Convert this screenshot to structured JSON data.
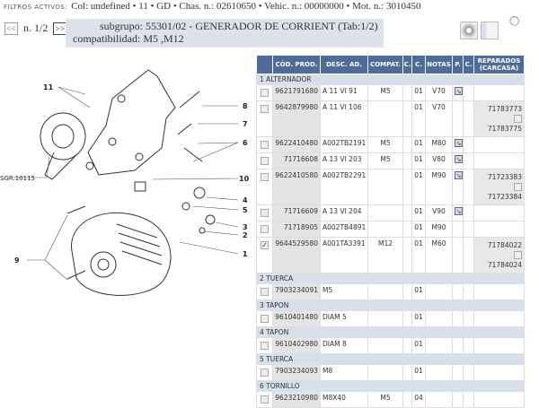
{
  "filters": {
    "label": "FILTROS ACTIVOS:",
    "text": "Col: undefined • 11 • GD • Chas. n.: 02610650 • Vehic. n.: 00000000 • Mot. n.: 3010450"
  },
  "nav": {
    "prev": "<<",
    "page": "n. 1/2",
    "next": ">>"
  },
  "subgroup": {
    "line1": "subgrupo: 55301/02 - GENERADOR DE CORRIENT (Tab:1/2)",
    "line2": "compatibilidad: M5 ,M12"
  },
  "diagram": {
    "labels": {
      "l11": "11",
      "l8": "8",
      "l7": "7",
      "l6": "6",
      "sgr": "SGR.10115",
      "l10": "10",
      "l4": "4",
      "l5": "5",
      "l3": "3",
      "l2": "2",
      "l1": "1",
      "l9": "9"
    }
  },
  "table": {
    "headers": [
      "CÓD. PROD.",
      "DESC. AD.",
      "COMPAT.",
      "C.",
      "C.",
      "NOTAS",
      "P.",
      "C.",
      "REPARADOS (CARCASA)"
    ],
    "groups": [
      {
        "title": "1 ALTERNADOR",
        "rows": [
          {
            "code": "9621791680",
            "desc": "A 11 VI 91",
            "compat": "M5",
            "c2": "01",
            "notas": "V70",
            "pic": true,
            "checked": false
          },
          {
            "code": "9642879980",
            "desc": "A 11 VI 106",
            "compat": "",
            "c2": "01",
            "notas": "V70",
            "pic": false,
            "checked": false,
            "rep": [
              "71783773",
              "71783775"
            ]
          },
          {
            "code": "9622410480",
            "desc": "A002TB2191",
            "compat": "M5",
            "c2": "01",
            "notas": "M80",
            "pic": true,
            "checked": false
          },
          {
            "code": "71716608",
            "desc": "A 13 VI 203",
            "compat": "M5",
            "c2": "01",
            "notas": "V80",
            "pic": true,
            "checked": false
          },
          {
            "code": "9622410580",
            "desc": "A002TB2291",
            "compat": "",
            "c2": "01",
            "notas": "M90",
            "pic": true,
            "checked": false,
            "rep": [
              "71723383",
              "71723384"
            ]
          },
          {
            "code": "71716609",
            "desc": "A 13 VI 204",
            "compat": "",
            "c2": "01",
            "notas": "V90",
            "pic": true,
            "checked": false
          },
          {
            "code": "71718905",
            "desc": "A002TB4891",
            "compat": "",
            "c2": "01",
            "notas": "M90",
            "pic": false,
            "checked": false
          },
          {
            "code": "9644529580",
            "desc": "A001TA3391",
            "compat": "M12",
            "c2": "01",
            "notas": "M60",
            "pic": false,
            "checked": true,
            "rep": [
              "71784022",
              "71784024"
            ]
          }
        ]
      },
      {
        "title": "2 TUERCA",
        "rows": [
          {
            "code": "7903234091",
            "desc": "M5",
            "compat": "",
            "c2": "01",
            "notas": "",
            "pic": false,
            "checked": false
          }
        ]
      },
      {
        "title": "3 TAPON",
        "rows": [
          {
            "code": "9610401480",
            "desc": "DIAM 5",
            "compat": "",
            "c2": "01",
            "notas": "",
            "pic": false,
            "checked": false
          }
        ]
      },
      {
        "title": "4 TAPON",
        "rows": [
          {
            "code": "9610402980",
            "desc": "DIAM 8",
            "compat": "",
            "c2": "01",
            "notas": "",
            "pic": false,
            "checked": false
          }
        ]
      },
      {
        "title": "5 TUERCA",
        "rows": [
          {
            "code": "7903234093",
            "desc": "M8",
            "compat": "",
            "c2": "01",
            "notas": "",
            "pic": false,
            "checked": false
          }
        ]
      },
      {
        "title": "6 TORNILLO",
        "rows": [
          {
            "code": "9623210980",
            "desc": "M8X40",
            "compat": "M5",
            "c2": "04",
            "notas": "",
            "pic": false,
            "checked": false
          }
        ]
      }
    ]
  },
  "colors": {
    "header": "#4e6b99",
    "section": "#d7dfea",
    "subgroup": "#dde2ea"
  }
}
